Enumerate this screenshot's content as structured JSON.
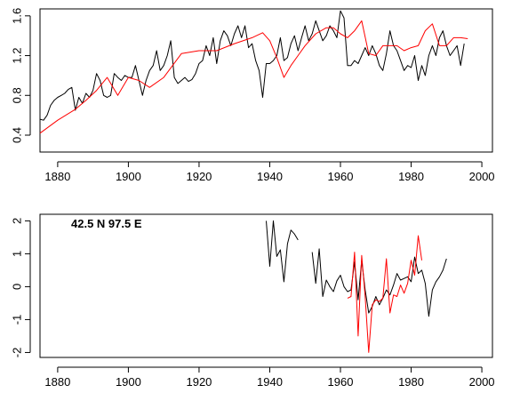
{
  "chart_data": [
    {
      "type": "line",
      "xlim": [
        1875,
        2003
      ],
      "ylim": [
        0.23,
        1.67
      ],
      "xticks": [
        1880,
        1900,
        1920,
        1940,
        1960,
        1980,
        2000
      ],
      "xtick_labels": [
        "1880",
        "1900",
        "1920",
        "1940",
        "1960",
        "1980",
        "2000"
      ],
      "yticks": [
        0.4,
        0.8,
        1.2,
        1.6
      ],
      "ytick_labels": [
        "0.4",
        "0.8",
        "1.2",
        "1.6"
      ],
      "grid": false,
      "series": [
        {
          "color": "#000000",
          "x": [
            1875,
            1876,
            1877,
            1878,
            1879,
            1880,
            1881,
            1882,
            1883,
            1884,
            1885,
            1886,
            1887,
            1888,
            1889,
            1890,
            1891,
            1892,
            1893,
            1894,
            1895,
            1896,
            1897,
            1898,
            1899,
            1900,
            1901,
            1902,
            1903,
            1904,
            1905,
            1906,
            1907,
            1908,
            1909,
            1910,
            1911,
            1912,
            1913,
            1914,
            1915,
            1916,
            1917,
            1918,
            1919,
            1920,
            1921,
            1922,
            1923,
            1924,
            1925,
            1926,
            1927,
            1928,
            1929,
            1930,
            1931,
            1932,
            1933,
            1934,
            1935,
            1936,
            1937,
            1938,
            1939,
            1940,
            1941,
            1942,
            1943,
            1944,
            1945,
            1946,
            1947,
            1948,
            1949,
            1950,
            1951,
            1952,
            1953,
            1954,
            1955,
            1956,
            1957,
            1958,
            1959,
            1960,
            1961,
            1962,
            1963,
            1964,
            1965,
            1966,
            1967,
            1968,
            1969,
            1970,
            1971,
            1972,
            1973,
            1974,
            1975,
            1976,
            1977,
            1978,
            1979,
            1980,
            1981,
            1982,
            1983,
            1984,
            1985,
            1986,
            1987,
            1988,
            1989,
            1990,
            1991,
            1992,
            1993,
            1994,
            1995
          ],
          "y": [
            0.56,
            0.55,
            0.6,
            0.7,
            0.75,
            0.78,
            0.8,
            0.82,
            0.86,
            0.88,
            0.65,
            0.78,
            0.72,
            0.82,
            0.78,
            0.85,
            1.02,
            0.95,
            0.8,
            0.78,
            0.8,
            1.02,
            0.98,
            0.95,
            1.0,
            0.98,
            0.98,
            1.1,
            0.95,
            0.8,
            0.95,
            1.05,
            1.1,
            1.25,
            1.05,
            1.1,
            1.2,
            1.35,
            0.98,
            0.92,
            0.95,
            0.98,
            0.94,
            0.96,
            1.02,
            1.12,
            1.15,
            1.3,
            1.2,
            1.38,
            1.12,
            1.35,
            1.45,
            1.4,
            1.3,
            1.42,
            1.5,
            1.38,
            1.5,
            1.28,
            1.32,
            1.15,
            1.05,
            0.78,
            1.12,
            1.12,
            1.15,
            1.2,
            1.38,
            1.15,
            1.18,
            1.32,
            1.4,
            1.25,
            1.38,
            1.5,
            1.35,
            1.42,
            1.55,
            1.45,
            1.35,
            1.4,
            1.5,
            1.45,
            1.38,
            1.65,
            1.58,
            1.1,
            1.1,
            1.15,
            1.12,
            1.2,
            1.28,
            1.2,
            1.3,
            1.22,
            1.1,
            1.05,
            1.22,
            1.45,
            1.3,
            1.25,
            1.15,
            1.05,
            1.1,
            1.08,
            1.2,
            0.95,
            1.1,
            1.0,
            1.2,
            1.3,
            1.2,
            1.38,
            1.45,
            1.3,
            1.2,
            1.25,
            1.3,
            1.1,
            1.32
          ]
        },
        {
          "color": "#ff0000",
          "x": [
            1875,
            1880,
            1885,
            1888,
            1891,
            1894,
            1897,
            1900,
            1903,
            1906,
            1910,
            1915,
            1920,
            1925,
            1930,
            1935,
            1938,
            1940,
            1942,
            1944,
            1946,
            1948,
            1950,
            1953,
            1956,
            1958,
            1960,
            1962,
            1964,
            1966,
            1968,
            1970,
            1972,
            1974,
            1976,
            1978,
            1980,
            1982,
            1984,
            1986,
            1988,
            1990,
            1992,
            1994,
            1996
          ],
          "y": [
            0.42,
            0.55,
            0.66,
            0.75,
            0.85,
            0.98,
            0.8,
            0.98,
            0.95,
            0.88,
            0.98,
            1.22,
            1.25,
            1.25,
            1.32,
            1.38,
            1.43,
            1.35,
            1.18,
            0.98,
            1.1,
            1.2,
            1.3,
            1.42,
            1.48,
            1.48,
            1.42,
            1.38,
            1.45,
            1.55,
            1.22,
            1.2,
            1.3,
            1.3,
            1.3,
            1.25,
            1.28,
            1.3,
            1.45,
            1.52,
            1.3,
            1.3,
            1.38,
            1.38,
            1.37
          ]
        }
      ]
    },
    {
      "type": "line",
      "xlim": [
        1875,
        2003
      ],
      "ylim": [
        -2.15,
        2.2
      ],
      "xticks": [
        1880,
        1900,
        1920,
        1940,
        1960,
        1980,
        2000
      ],
      "xtick_labels": [
        "1880",
        "1900",
        "1920",
        "1940",
        "1960",
        "1980",
        "2000"
      ],
      "yticks": [
        -2,
        -1,
        0,
        1,
        2
      ],
      "ytick_labels": [
        "-2",
        "-1",
        "0",
        "1",
        "2"
      ],
      "grid": false,
      "annotation": "42.5 N  97.5 E",
      "series": [
        {
          "color": "#000000",
          "x": [
            1939,
            1940,
            1941,
            1942,
            1943,
            1944,
            1945,
            1946,
            1947,
            1948,
            null,
            1952,
            1953,
            1954,
            1955,
            1956,
            1957,
            1958,
            1959,
            1960,
            1961,
            1962,
            1963,
            1964,
            1965,
            1966,
            1967,
            1968,
            1969,
            1970,
            1971,
            1972,
            1973,
            1974,
            1975,
            1976,
            1977,
            1978,
            1979,
            1980,
            1981,
            1982,
            1983,
            1984,
            1985,
            1986,
            1987,
            1988,
            1989,
            1990
          ],
          "y": [
            2.0,
            0.62,
            2.0,
            0.92,
            1.12,
            0.15,
            1.3,
            1.72,
            1.6,
            1.42,
            null,
            1.05,
            0.1,
            1.15,
            -0.3,
            0.2,
            0.0,
            -0.15,
            0.18,
            0.35,
            0.0,
            -0.15,
            -0.1,
            0.75,
            -0.4,
            0.8,
            -0.1,
            -0.8,
            -0.6,
            -0.3,
            -0.55,
            -0.35,
            -0.1,
            -0.25,
            0.05,
            0.4,
            0.2,
            0.25,
            0.3,
            0.15,
            0.9,
            0.4,
            0.5,
            0.1,
            -0.9,
            -0.1,
            0.15,
            0.3,
            0.5,
            0.85
          ]
        },
        {
          "color": "#ff0000",
          "x": [
            1962,
            1963,
            1964,
            1965,
            1966,
            1967,
            1968,
            1969,
            1970,
            1971,
            1972,
            1973,
            1974,
            1975,
            1976,
            1977,
            1978,
            1979,
            1980,
            1981,
            1982,
            1983
          ],
          "y": [
            -0.35,
            -0.3,
            1.05,
            -1.5,
            0.95,
            -0.3,
            -2.0,
            -0.55,
            -0.4,
            -0.45,
            -0.35,
            0.85,
            -0.8,
            -0.25,
            -0.3,
            0.05,
            -0.2,
            0.1,
            0.8,
            0.35,
            1.55,
            0.8
          ]
        }
      ]
    }
  ]
}
